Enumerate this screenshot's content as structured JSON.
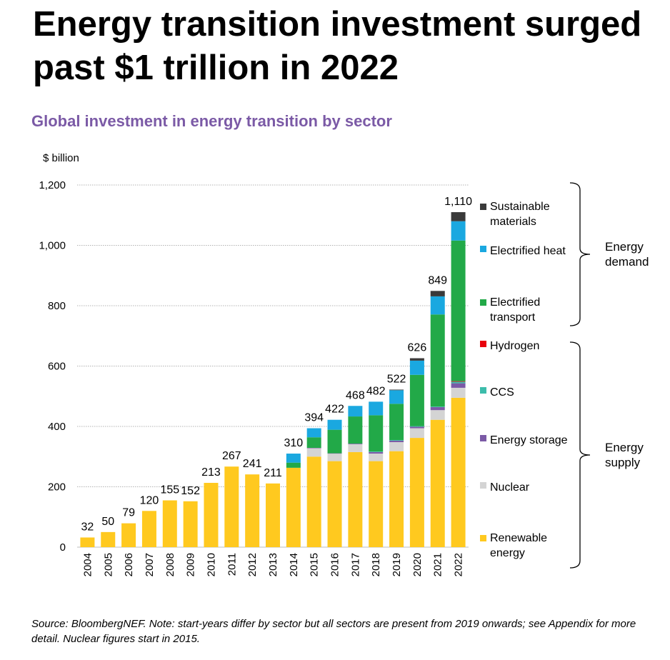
{
  "headline": "Energy transition investment surged past $1 trillion in 2022",
  "subtitle": "Global investment in energy transition by sector",
  "footnote": "Source: BloombergNEF. Note: start-years differ by sector but all sectors are present from 2019 onwards; see Appendix for more detail. Nuclear figures start in 2015.",
  "colors": {
    "Renewable energy": "#ffc91f",
    "Nuclear": "#d4d4d4",
    "Energy storage": "#7b5aa6",
    "CCS": "#3cbcab",
    "Hydrogen": "#e8000d",
    "Electrified transport": "#22a948",
    "Electrified heat": "#1aa8e0",
    "Sustainable materials": "#3a3a3a"
  },
  "chart_data": {
    "type": "bar",
    "stacked": true,
    "title": "Global investment in energy transition by sector",
    "ylabel": "$ billion",
    "ylim": [
      0,
      1200
    ],
    "yticks": [
      0,
      200,
      400,
      600,
      800,
      1000,
      1200
    ],
    "yticklabels": [
      "0",
      "200",
      "400",
      "600",
      "800",
      "1,000",
      "1,200"
    ],
    "grid": true,
    "categories": [
      "2004",
      "2005",
      "2006",
      "2007",
      "2008",
      "2009",
      "2010",
      "2011",
      "2012",
      "2013",
      "2014",
      "2015",
      "2016",
      "2017",
      "2018",
      "2019",
      "2020",
      "2021",
      "2022"
    ],
    "series": [
      {
        "name": "Renewable energy",
        "values": [
          32,
          50,
          79,
          120,
          155,
          152,
          213,
          267,
          241,
          211,
          263,
          300,
          285,
          315,
          285,
          318,
          362,
          422,
          495
        ]
      },
      {
        "name": "Nuclear",
        "values": [
          0,
          0,
          0,
          0,
          0,
          0,
          0,
          0,
          0,
          0,
          0,
          28,
          25,
          26,
          25,
          30,
          32,
          32,
          33
        ]
      },
      {
        "name": "Energy storage",
        "values": [
          0,
          0,
          0,
          0,
          0,
          0,
          0,
          0,
          0,
          0,
          0,
          1,
          1,
          2,
          5,
          5,
          5,
          10,
          15
        ]
      },
      {
        "name": "CCS",
        "values": [
          0,
          0,
          0,
          0,
          0,
          0,
          0,
          0,
          0,
          0,
          0,
          0,
          0,
          0,
          2,
          2,
          2,
          2,
          5
        ]
      },
      {
        "name": "Hydrogen",
        "values": [
          0,
          0,
          0,
          0,
          0,
          0,
          0,
          0,
          0,
          0,
          0,
          0,
          0,
          0,
          0,
          0,
          0,
          0,
          2
        ]
      },
      {
        "name": "Electrified transport",
        "values": [
          0,
          0,
          0,
          0,
          0,
          0,
          0,
          0,
          0,
          0,
          17,
          35,
          78,
          90,
          120,
          120,
          170,
          305,
          466
        ]
      },
      {
        "name": "Electrified heat",
        "values": [
          0,
          0,
          0,
          0,
          0,
          0,
          0,
          0,
          0,
          0,
          30,
          30,
          33,
          35,
          45,
          45,
          47,
          60,
          64
        ]
      },
      {
        "name": "Sustainable materials",
        "values": [
          0,
          0,
          0,
          0,
          0,
          0,
          0,
          0,
          0,
          0,
          0,
          0,
          0,
          0,
          0,
          2,
          8,
          18,
          30
        ]
      }
    ],
    "totals": [
      32,
      50,
      79,
      120,
      155,
      152,
      213,
      267,
      241,
      211,
      310,
      394,
      422,
      468,
      482,
      522,
      626,
      849,
      1110
    ],
    "total_labels": [
      "32",
      "50",
      "79",
      "120",
      "155",
      "152",
      "213",
      "267",
      "241",
      "211",
      "310",
      "394",
      "422",
      "468",
      "482",
      "522",
      "626",
      "849",
      "1,110"
    ],
    "legend": {
      "placement": "right",
      "entries_top_to_bottom": [
        {
          "series": "Sustainable materials",
          "lines": [
            "Sustainable",
            "materials"
          ]
        },
        {
          "series": "Electrified heat",
          "lines": [
            "Electrified heat"
          ]
        },
        {
          "series": "Electrified transport",
          "lines": [
            "Electrified",
            "transport"
          ]
        },
        {
          "series": "Hydrogen",
          "lines": [
            "Hydrogen"
          ]
        },
        {
          "series": "CCS",
          "lines": [
            "CCS"
          ]
        },
        {
          "series": "Energy storage",
          "lines": [
            "Energy storage"
          ]
        },
        {
          "series": "Nuclear",
          "lines": [
            "Nuclear"
          ]
        },
        {
          "series": "Renewable energy",
          "lines": [
            "Renewable",
            "energy"
          ]
        }
      ]
    },
    "groups": [
      {
        "lines": [
          "Energy",
          "demand"
        ],
        "members": [
          "Sustainable materials",
          "Electrified heat",
          "Electrified transport"
        ]
      },
      {
        "lines": [
          "Energy",
          "supply"
        ],
        "members": [
          "Hydrogen",
          "CCS",
          "Energy storage",
          "Nuclear",
          "Renewable energy"
        ]
      }
    ]
  }
}
